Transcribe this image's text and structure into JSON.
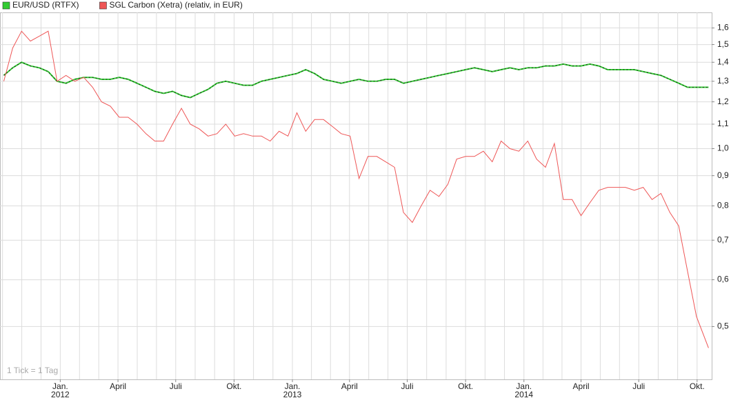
{
  "chart_data": {
    "type": "line",
    "log_y": true,
    "grid": true,
    "legend_position": "top-left",
    "annotation": "1 Tick = 1 Tag",
    "x": [
      -89,
      -75,
      -61,
      -47,
      -33,
      -19,
      -5,
      9,
      23,
      37,
      51,
      65,
      79,
      93,
      107,
      121,
      135,
      149,
      163,
      177,
      191,
      205,
      219,
      233,
      247,
      261,
      275,
      289,
      303,
      317,
      331,
      345,
      359,
      373,
      387,
      401,
      415,
      429,
      443,
      457,
      471,
      485,
      499,
      513,
      527,
      541,
      555,
      569,
      583,
      597,
      611,
      625,
      639,
      653,
      667,
      681,
      695,
      709,
      723,
      737,
      751,
      765,
      779,
      793,
      807,
      821,
      835,
      849,
      863,
      877,
      891,
      905,
      919,
      933,
      947,
      961,
      975,
      989,
      1003,
      1022
    ],
    "series": [
      {
        "name": "EUR/USD (RTFX)",
        "color": "#33cc33",
        "values": [
          1.33,
          1.37,
          1.4,
          1.38,
          1.37,
          1.35,
          1.3,
          1.29,
          1.31,
          1.32,
          1.32,
          1.31,
          1.31,
          1.32,
          1.31,
          1.29,
          1.27,
          1.25,
          1.24,
          1.25,
          1.23,
          1.22,
          1.24,
          1.26,
          1.29,
          1.3,
          1.29,
          1.28,
          1.28,
          1.3,
          1.31,
          1.32,
          1.33,
          1.34,
          1.36,
          1.34,
          1.31,
          1.3,
          1.29,
          1.3,
          1.31,
          1.3,
          1.3,
          1.31,
          1.31,
          1.29,
          1.3,
          1.31,
          1.32,
          1.33,
          1.34,
          1.35,
          1.36,
          1.37,
          1.36,
          1.35,
          1.36,
          1.37,
          1.36,
          1.37,
          1.37,
          1.38,
          1.38,
          1.39,
          1.38,
          1.38,
          1.39,
          1.38,
          1.36,
          1.36,
          1.36,
          1.36,
          1.35,
          1.34,
          1.33,
          1.31,
          1.29,
          1.27,
          1.27,
          1.27
        ]
      },
      {
        "name": "SGL Carbon (Xetra) (relativ, in EUR)",
        "color": "#ee5555",
        "values": [
          1.3,
          1.48,
          1.58,
          1.52,
          1.55,
          1.58,
          1.3,
          1.33,
          1.3,
          1.32,
          1.27,
          1.2,
          1.18,
          1.13,
          1.13,
          1.1,
          1.06,
          1.03,
          1.03,
          1.1,
          1.17,
          1.1,
          1.08,
          1.05,
          1.06,
          1.1,
          1.05,
          1.06,
          1.05,
          1.05,
          1.03,
          1.07,
          1.05,
          1.15,
          1.07,
          1.12,
          1.12,
          1.09,
          1.06,
          1.05,
          0.89,
          0.97,
          0.97,
          0.95,
          0.93,
          0.78,
          0.75,
          0.8,
          0.85,
          0.83,
          0.87,
          0.96,
          0.97,
          0.97,
          0.99,
          0.95,
          1.03,
          1.0,
          0.99,
          1.03,
          0.96,
          0.93,
          1.02,
          0.82,
          0.82,
          0.77,
          0.81,
          0.85,
          0.86,
          0.86,
          0.86,
          0.85,
          0.86,
          0.82,
          0.84,
          0.78,
          0.74,
          0.62,
          0.52,
          0.46
        ]
      }
    ],
    "xlim": [
      -95,
      1027
    ],
    "xticks": [
      {
        "value": 0,
        "label": "Jan."
      },
      {
        "value": 91,
        "label": "April"
      },
      {
        "value": 182,
        "label": "Juli"
      },
      {
        "value": 274,
        "label": "Okt."
      },
      {
        "value": 366,
        "label": "Jan."
      },
      {
        "value": 456,
        "label": "April"
      },
      {
        "value": 547,
        "label": "Juli"
      },
      {
        "value": 639,
        "label": "Okt."
      },
      {
        "value": 731,
        "label": "Jan."
      },
      {
        "value": 821,
        "label": "April"
      },
      {
        "value": 912,
        "label": "Juli"
      },
      {
        "value": 1004,
        "label": "Okt."
      }
    ],
    "year_ticks": [
      {
        "value": 0,
        "label": "2012"
      },
      {
        "value": 366,
        "label": "2013"
      },
      {
        "value": 731,
        "label": "2014"
      }
    ],
    "ylim": [
      0.407,
      1.7
    ],
    "yticks": [
      {
        "value": 0.5,
        "label": "0,5"
      },
      {
        "value": 0.6,
        "label": "0,6"
      },
      {
        "value": 0.7,
        "label": "0,7"
      },
      {
        "value": 0.8,
        "label": "0,8"
      },
      {
        "value": 0.9,
        "label": "0,9"
      },
      {
        "value": 1.0,
        "label": "1,0"
      },
      {
        "value": 1.1,
        "label": "1,1"
      },
      {
        "value": 1.2,
        "label": "1,2"
      },
      {
        "value": 1.3,
        "label": "1,3"
      },
      {
        "value": 1.4,
        "label": "1,4"
      },
      {
        "value": 1.5,
        "label": "1,5"
      },
      {
        "value": 1.6,
        "label": "1,6"
      }
    ]
  }
}
